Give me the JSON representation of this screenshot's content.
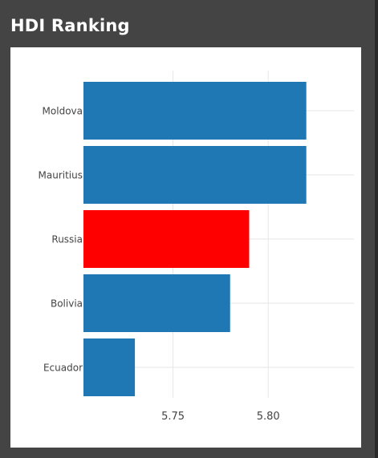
{
  "widget": {
    "title": "HDI Ranking"
  },
  "colors": {
    "default_bar": "#1f77b4",
    "highlight_bar": "#ff0000",
    "grid": "#e6e6e6",
    "tick_text": "#444444",
    "frame_bg": "#444444",
    "panel_bg": "#ffffff"
  },
  "chart_data": {
    "type": "bar",
    "orientation": "horizontal",
    "title": "",
    "xlabel": "",
    "ylabel": "",
    "categories": [
      "Moldova",
      "Mauritius",
      "Russia",
      "Bolivia",
      "Ecuador"
    ],
    "values": [
      5.82,
      5.82,
      5.79,
      5.78,
      5.73
    ],
    "highlight": "Russia",
    "xlim": [
      5.703,
      5.845
    ],
    "xticks": [
      5.75,
      5.8
    ],
    "xtick_labels": [
      "5.75",
      "5.80"
    ],
    "grid": true,
    "legend": "none"
  }
}
